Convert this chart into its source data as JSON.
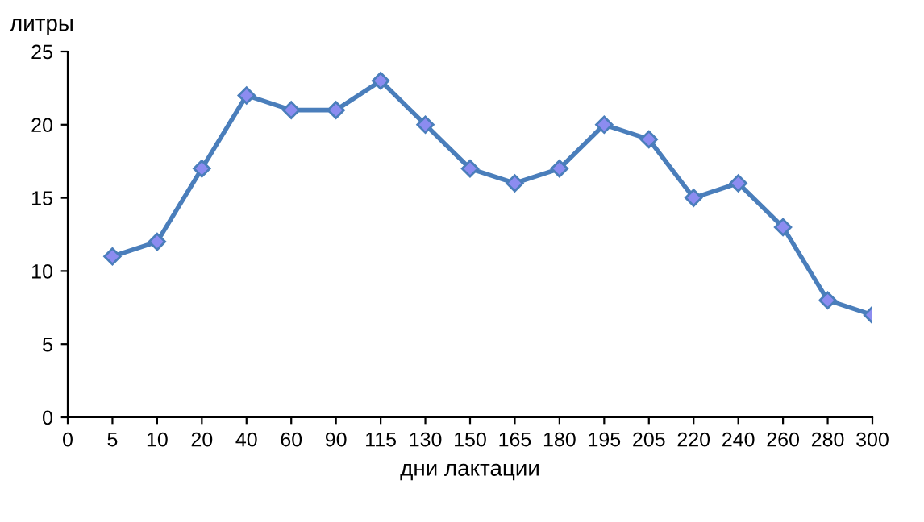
{
  "chart_data": {
    "type": "line",
    "ylabel": "литры",
    "xlabel": "дни лактации",
    "categories": [
      "0",
      "5",
      "10",
      "20",
      "40",
      "60",
      "90",
      "115",
      "130",
      "150",
      "165",
      "180",
      "195",
      "205",
      "220",
      "240",
      "260",
      "280",
      "300"
    ],
    "series": [
      {
        "color": "#4a7ebb",
        "values": [
          null,
          11,
          12,
          17,
          22,
          21,
          21,
          23,
          20,
          17,
          16,
          17,
          20,
          19,
          15,
          16,
          13,
          8,
          7
        ]
      }
    ],
    "ylim": [
      0,
      25
    ],
    "yticks": [
      0,
      5,
      10,
      15,
      20,
      25
    ],
    "grid": false,
    "legend": false,
    "marker": "diamond",
    "line_style": "solid"
  }
}
